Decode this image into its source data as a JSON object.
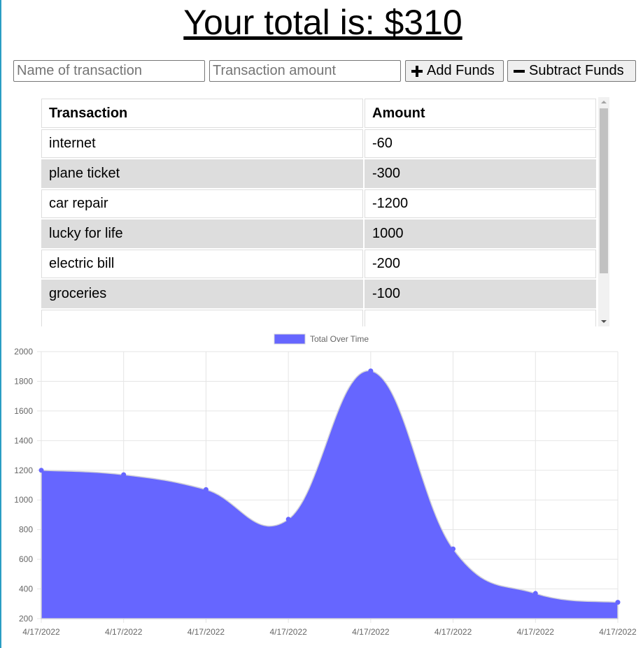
{
  "header": {
    "total_text": "Your total is: $310"
  },
  "form": {
    "name_placeholder": "Name of transaction",
    "amount_placeholder": "Transaction amount",
    "add_label": "Add Funds",
    "subtract_label": "Subtract Funds"
  },
  "table": {
    "headers": [
      "Transaction",
      "Amount"
    ],
    "rows": [
      {
        "name": "internet",
        "amount": "-60"
      },
      {
        "name": "plane ticket",
        "amount": "-300"
      },
      {
        "name": "car repair",
        "amount": "-1200"
      },
      {
        "name": "lucky for life",
        "amount": "1000"
      },
      {
        "name": "electric bill",
        "amount": "-200"
      },
      {
        "name": "groceries",
        "amount": "-100"
      }
    ]
  },
  "chart_data": {
    "type": "area",
    "legend": "Total Over Time",
    "legend_position": "top",
    "categories": [
      "4/17/2022",
      "4/17/2022",
      "4/17/2022",
      "4/17/2022",
      "4/17/2022",
      "4/17/2022",
      "4/17/2022",
      "4/17/2022"
    ],
    "series": [
      {
        "name": "Total Over Time",
        "values": [
          1200,
          1170,
          1070,
          870,
          1870,
          670,
          370,
          310
        ]
      }
    ],
    "ylim": [
      200,
      2000
    ],
    "yticks": [
      200,
      400,
      600,
      800,
      1000,
      1200,
      1400,
      1600,
      1800,
      2000
    ],
    "grid": true,
    "fill_color": "#6666ff",
    "line_color": "#d0d0d8"
  }
}
